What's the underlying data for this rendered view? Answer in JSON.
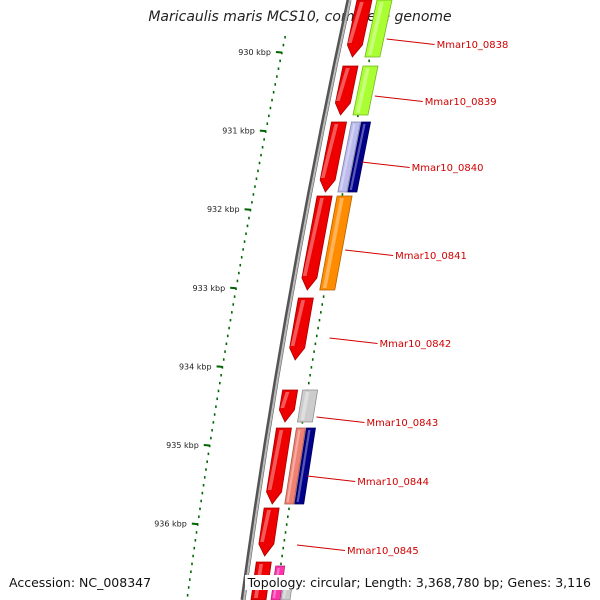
{
  "header": {
    "title": "Maricaulis maris MCS10, complete genome"
  },
  "footer": {
    "accession": "Accession: NC_008347",
    "topology": "Topology: circular; Length: 3,368,780 bp; Genes: 3,116"
  },
  "scale": {
    "ticks": [
      "930 kbp",
      "931 kbp",
      "932 kbp",
      "933 kbp",
      "934 kbp",
      "935 kbp",
      "936 kbp"
    ]
  },
  "genes": [
    {
      "label": "Mmar10_0838",
      "forward": "#ee0000",
      "tracks": [
        "#aaff33"
      ]
    },
    {
      "label": "Mmar10_0839",
      "forward": "#ee0000",
      "tracks": [
        "#aaff33"
      ]
    },
    {
      "label": "Mmar10_0840",
      "forward": "#ee0000",
      "tracks": [
        "#bbbbee",
        "#000088"
      ]
    },
    {
      "label": "Mmar10_0841",
      "forward": "#ee0000",
      "tracks": [
        "#ff8c00"
      ]
    },
    {
      "label": "Mmar10_0842",
      "forward": "#ee0000",
      "tracks": []
    },
    {
      "label": "Mmar10_0843",
      "forward": "#ee0000",
      "tracks": [
        "#cccccc"
      ]
    },
    {
      "label": "Mmar10_0844",
      "forward": "#ee0000",
      "tracks": [
        "#f08070",
        "#000088"
      ]
    },
    {
      "label": "Mmar10_0845",
      "forward": "#ee0000",
      "tracks": []
    }
  ],
  "colors": {
    "label": "#d00000",
    "tick": "#006400",
    "backbone": "#888888",
    "feature_track": "#ee0000",
    "partial_track": "#ff33aa"
  }
}
